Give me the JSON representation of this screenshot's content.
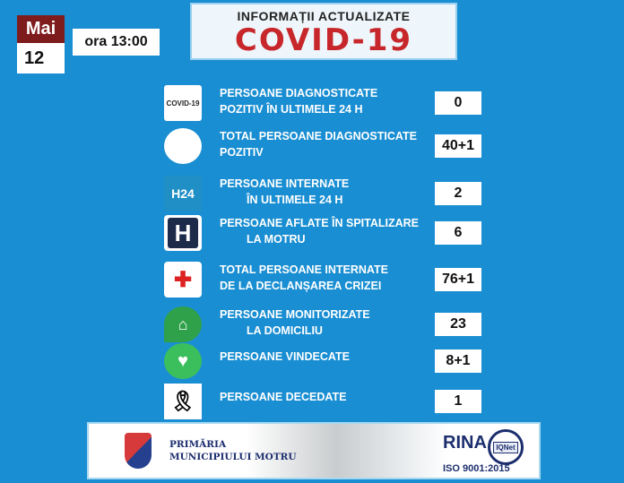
{
  "date": {
    "month": "Mai",
    "day": "12",
    "time": "ora 13:00"
  },
  "banner": {
    "line1": "INFORMAȚII ACTUALIZATE",
    "line2": "COVID-19"
  },
  "stats": [
    {
      "icon": "covid-test-icon",
      "icon_text": "COVID-19",
      "line1": "PERSOANE DIAGNOSTICATE",
      "line2": "POZITIV  ÎN ULTIMELE 24 H",
      "value": "0"
    },
    {
      "icon": "patient-icon",
      "icon_text": "",
      "line1": "TOTAL   PERSOANE DIAGNOSTICATE",
      "line2": "POZITIV",
      "value": "40+1"
    },
    {
      "icon": "h24-icon",
      "icon_text": "H24",
      "line1": "PERSOANE INTERNATE",
      "line2": "ÎN ULTIMELE 24 H",
      "value": "2"
    },
    {
      "icon": "hospital-icon",
      "icon_text": "H",
      "line1": "PERSOANE  AFLATE  ÎN SPITALIZARE",
      "line2": "LA MOTRU",
      "value": "6"
    },
    {
      "icon": "medical-star-icon",
      "icon_text": "✚",
      "line1": "TOTAL PERSOANE INTERNATE",
      "line2": "DE LA DECLANȘAREA CRIZEI",
      "value": "76+1"
    },
    {
      "icon": "home-location-icon",
      "icon_text": "⌂",
      "line1": "PERSOANE MONITORIZATE",
      "line2": "LA DOMICILIU",
      "value": "23"
    },
    {
      "icon": "heart-pulse-icon",
      "icon_text": "♥",
      "line1": "PERSOANE VINDECATE",
      "line2": "",
      "value": "8+1"
    },
    {
      "icon": "mourning-ribbon-icon",
      "icon_text": "🎗",
      "line1": "PERSOANE  DECEDATE",
      "line2": "",
      "value": "1"
    }
  ],
  "footer": {
    "line1": "PRIMĂRIA",
    "line2": "MUNICIPIULUI MOTRU",
    "rina": "RINA",
    "iqnet": "IQNet",
    "iso": "ISO 9001:2015"
  }
}
